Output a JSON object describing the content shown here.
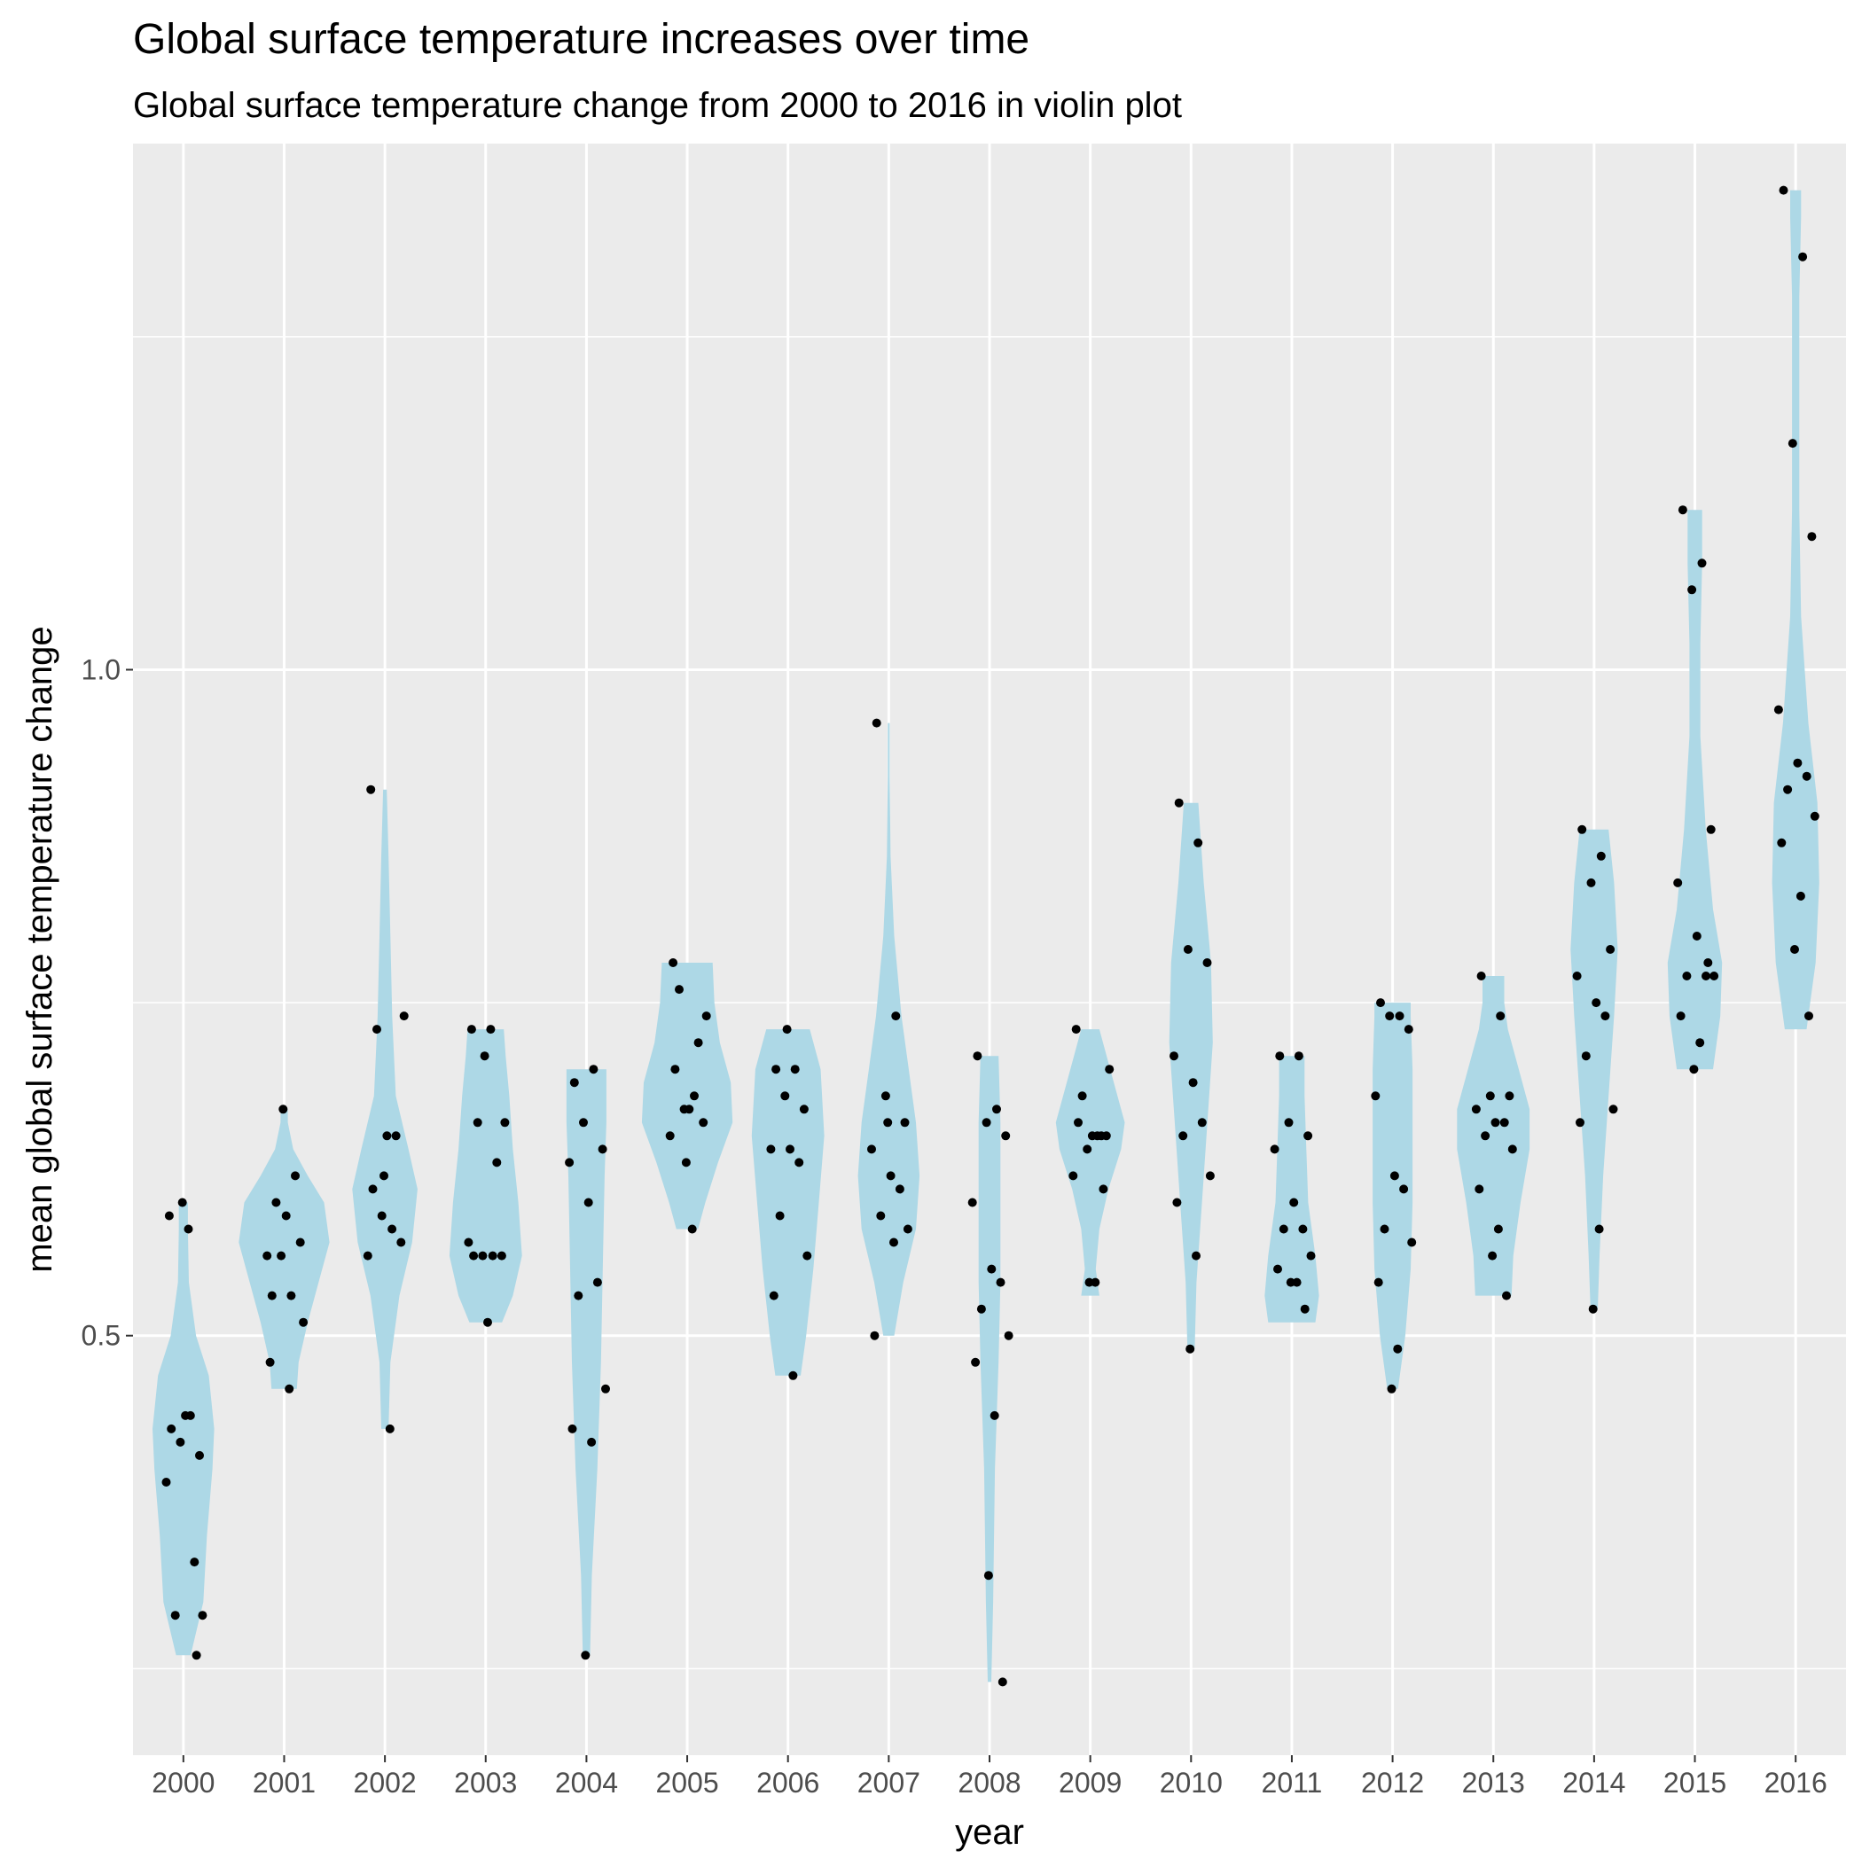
{
  "chart_data": {
    "type": "violin",
    "title": "Global surface temperature increases over time",
    "subtitle": "Global surface temperature change from 2000 to 2016 in violin plot",
    "xlabel": "year",
    "ylabel": "mean global surface temperature change",
    "ylim": [
      0.185,
      1.395
    ],
    "yticks": [
      0.5,
      1.0
    ],
    "ytick_labels": [
      "0.5",
      "1.0"
    ],
    "grid": true,
    "legend": "none",
    "colors": {
      "panel": "#ebebeb",
      "grid": "#ffffff",
      "violin": "#add8e6",
      "point": "#000000",
      "tick": "#333333"
    },
    "categories": [
      "2000",
      "2001",
      "2002",
      "2003",
      "2004",
      "2005",
      "2006",
      "2007",
      "2008",
      "2009",
      "2010",
      "2011",
      "2012",
      "2013",
      "2014",
      "2015",
      "2016"
    ],
    "series": [
      {
        "category": "2000",
        "values": [
          0.43,
          0.44,
          0.42,
          0.41,
          0.39,
          0.44,
          0.33,
          0.29,
          0.29,
          0.59,
          0.58,
          0.6,
          0.26
        ],
        "profile": [
          [
            0.26,
            0.08
          ],
          [
            0.3,
            0.22
          ],
          [
            0.35,
            0.26
          ],
          [
            0.4,
            0.32
          ],
          [
            0.43,
            0.34
          ],
          [
            0.47,
            0.28
          ],
          [
            0.5,
            0.14
          ],
          [
            0.54,
            0.06
          ],
          [
            0.58,
            0.05
          ],
          [
            0.6,
            0.05
          ]
        ]
      },
      {
        "category": "2001",
        "values": [
          0.53,
          0.53,
          0.56,
          0.57,
          0.56,
          0.59,
          0.62,
          0.6,
          0.51,
          0.48,
          0.46,
          0.67
        ],
        "profile": [
          [
            0.46,
            0.14
          ],
          [
            0.48,
            0.16
          ],
          [
            0.51,
            0.26
          ],
          [
            0.54,
            0.38
          ],
          [
            0.57,
            0.5
          ],
          [
            0.6,
            0.44
          ],
          [
            0.62,
            0.26
          ],
          [
            0.64,
            0.1
          ],
          [
            0.66,
            0.04
          ],
          [
            0.67,
            0.04
          ]
        ]
      },
      {
        "category": "2002",
        "values": [
          0.61,
          0.58,
          0.59,
          0.57,
          0.56,
          0.65,
          0.65,
          0.73,
          0.74,
          0.91,
          0.43,
          0.62
        ],
        "profile": [
          [
            0.43,
            0.04
          ],
          [
            0.48,
            0.06
          ],
          [
            0.53,
            0.16
          ],
          [
            0.57,
            0.3
          ],
          [
            0.61,
            0.36
          ],
          [
            0.64,
            0.26
          ],
          [
            0.68,
            0.12
          ],
          [
            0.74,
            0.08
          ],
          [
            0.8,
            0.06
          ],
          [
            0.86,
            0.04
          ],
          [
            0.91,
            0.02
          ]
        ]
      },
      {
        "category": "2003",
        "values": [
          0.56,
          0.56,
          0.56,
          0.56,
          0.57,
          0.51,
          0.63,
          0.66,
          0.66,
          0.73,
          0.73,
          0.71
        ],
        "profile": [
          [
            0.51,
            0.18
          ],
          [
            0.53,
            0.3
          ],
          [
            0.56,
            0.4
          ],
          [
            0.6,
            0.36
          ],
          [
            0.64,
            0.3
          ],
          [
            0.68,
            0.26
          ],
          [
            0.71,
            0.22
          ],
          [
            0.73,
            0.2
          ]
        ]
      },
      {
        "category": "2004",
        "values": [
          0.69,
          0.7,
          0.66,
          0.64,
          0.63,
          0.6,
          0.54,
          0.53,
          0.46,
          0.43,
          0.42,
          0.26
        ],
        "profile": [
          [
            0.26,
            0.04
          ],
          [
            0.32,
            0.06
          ],
          [
            0.4,
            0.12
          ],
          [
            0.48,
            0.16
          ],
          [
            0.55,
            0.18
          ],
          [
            0.62,
            0.2
          ],
          [
            0.66,
            0.22
          ],
          [
            0.7,
            0.22
          ]
        ]
      },
      {
        "category": "2005",
        "values": [
          0.7,
          0.68,
          0.67,
          0.66,
          0.65,
          0.67,
          0.72,
          0.76,
          0.74,
          0.78,
          0.58,
          0.63
        ],
        "profile": [
          [
            0.58,
            0.12
          ],
          [
            0.6,
            0.2
          ],
          [
            0.63,
            0.34
          ],
          [
            0.66,
            0.5
          ],
          [
            0.69,
            0.48
          ],
          [
            0.72,
            0.36
          ],
          [
            0.75,
            0.3
          ],
          [
            0.78,
            0.28
          ]
        ]
      },
      {
        "category": "2006",
        "values": [
          0.7,
          0.7,
          0.68,
          0.67,
          0.64,
          0.64,
          0.63,
          0.59,
          0.56,
          0.53,
          0.47,
          0.73
        ],
        "profile": [
          [
            0.47,
            0.14
          ],
          [
            0.5,
            0.2
          ],
          [
            0.55,
            0.28
          ],
          [
            0.6,
            0.34
          ],
          [
            0.65,
            0.4
          ],
          [
            0.7,
            0.36
          ],
          [
            0.73,
            0.24
          ]
        ]
      },
      {
        "category": "2007",
        "values": [
          0.96,
          0.74,
          0.68,
          0.66,
          0.64,
          0.62,
          0.61,
          0.59,
          0.58,
          0.5,
          0.57,
          0.66
        ],
        "profile": [
          [
            0.5,
            0.06
          ],
          [
            0.54,
            0.16
          ],
          [
            0.58,
            0.3
          ],
          [
            0.62,
            0.34
          ],
          [
            0.66,
            0.3
          ],
          [
            0.7,
            0.22
          ],
          [
            0.74,
            0.14
          ],
          [
            0.8,
            0.06
          ],
          [
            0.86,
            0.02
          ],
          [
            0.92,
            0.01
          ],
          [
            0.96,
            0.01
          ]
        ]
      },
      {
        "category": "2008",
        "values": [
          0.71,
          0.67,
          0.66,
          0.65,
          0.6,
          0.55,
          0.54,
          0.52,
          0.5,
          0.48,
          0.44,
          0.32,
          0.24
        ],
        "profile": [
          [
            0.24,
            0.02
          ],
          [
            0.3,
            0.04
          ],
          [
            0.4,
            0.06
          ],
          [
            0.48,
            0.1
          ],
          [
            0.54,
            0.12
          ],
          [
            0.6,
            0.12
          ],
          [
            0.66,
            0.12
          ],
          [
            0.71,
            0.1
          ]
        ]
      },
      {
        "category": "2009",
        "values": [
          0.66,
          0.65,
          0.64,
          0.65,
          0.62,
          0.65,
          0.65,
          0.68,
          0.7,
          0.73,
          0.54,
          0.54,
          0.61
        ],
        "profile": [
          [
            0.53,
            0.1
          ],
          [
            0.55,
            0.06
          ],
          [
            0.58,
            0.1
          ],
          [
            0.61,
            0.2
          ],
          [
            0.64,
            0.34
          ],
          [
            0.66,
            0.38
          ],
          [
            0.69,
            0.26
          ],
          [
            0.72,
            0.14
          ],
          [
            0.73,
            0.1
          ]
        ]
      },
      {
        "category": "2010",
        "values": [
          0.9,
          0.87,
          0.79,
          0.78,
          0.71,
          0.69,
          0.66,
          0.65,
          0.62,
          0.6,
          0.56,
          0.49
        ],
        "profile": [
          [
            0.49,
            0.04
          ],
          [
            0.54,
            0.06
          ],
          [
            0.6,
            0.12
          ],
          [
            0.66,
            0.18
          ],
          [
            0.72,
            0.24
          ],
          [
            0.78,
            0.22
          ],
          [
            0.84,
            0.14
          ],
          [
            0.88,
            0.1
          ],
          [
            0.9,
            0.08
          ]
        ]
      },
      {
        "category": "2011",
        "values": [
          0.71,
          0.71,
          0.66,
          0.65,
          0.64,
          0.6,
          0.58,
          0.58,
          0.56,
          0.55,
          0.54,
          0.54,
          0.52
        ],
        "profile": [
          [
            0.51,
            0.26
          ],
          [
            0.53,
            0.3
          ],
          [
            0.56,
            0.26
          ],
          [
            0.6,
            0.18
          ],
          [
            0.64,
            0.16
          ],
          [
            0.68,
            0.14
          ],
          [
            0.71,
            0.14
          ]
        ]
      },
      {
        "category": "2012",
        "values": [
          0.75,
          0.74,
          0.74,
          0.73,
          0.68,
          0.62,
          0.61,
          0.58,
          0.57,
          0.54,
          0.49,
          0.46
        ],
        "profile": [
          [
            0.46,
            0.06
          ],
          [
            0.5,
            0.14
          ],
          [
            0.55,
            0.2
          ],
          [
            0.6,
            0.22
          ],
          [
            0.65,
            0.22
          ],
          [
            0.7,
            0.22
          ],
          [
            0.74,
            0.2
          ],
          [
            0.75,
            0.2
          ]
        ]
      },
      {
        "category": "2013",
        "values": [
          0.77,
          0.74,
          0.68,
          0.68,
          0.67,
          0.66,
          0.66,
          0.65,
          0.64,
          0.61,
          0.58,
          0.56,
          0.53
        ],
        "profile": [
          [
            0.53,
            0.2
          ],
          [
            0.56,
            0.22
          ],
          [
            0.6,
            0.3
          ],
          [
            0.64,
            0.4
          ],
          [
            0.67,
            0.4
          ],
          [
            0.7,
            0.28
          ],
          [
            0.73,
            0.16
          ],
          [
            0.75,
            0.12
          ],
          [
            0.77,
            0.12
          ]
        ]
      },
      {
        "category": "2014",
        "values": [
          0.88,
          0.86,
          0.84,
          0.79,
          0.77,
          0.75,
          0.74,
          0.71,
          0.67,
          0.66,
          0.58,
          0.52
        ],
        "profile": [
          [
            0.52,
            0.04
          ],
          [
            0.56,
            0.06
          ],
          [
            0.62,
            0.1
          ],
          [
            0.68,
            0.16
          ],
          [
            0.74,
            0.22
          ],
          [
            0.79,
            0.26
          ],
          [
            0.84,
            0.22
          ],
          [
            0.88,
            0.16
          ]
        ]
      },
      {
        "category": "2015",
        "values": [
          1.12,
          1.08,
          1.06,
          0.88,
          0.84,
          0.8,
          0.77,
          0.77,
          0.77,
          0.74,
          0.72,
          0.7,
          0.78
        ],
        "profile": [
          [
            0.7,
            0.2
          ],
          [
            0.74,
            0.28
          ],
          [
            0.78,
            0.3
          ],
          [
            0.82,
            0.2
          ],
          [
            0.88,
            0.12
          ],
          [
            0.95,
            0.06
          ],
          [
            1.02,
            0.06
          ],
          [
            1.08,
            0.08
          ],
          [
            1.12,
            0.08
          ]
        ]
      },
      {
        "category": "2016",
        "values": [
          1.36,
          1.31,
          1.17,
          1.1,
          0.97,
          0.93,
          0.92,
          0.91,
          0.89,
          0.87,
          0.83,
          0.79,
          0.74
        ],
        "profile": [
          [
            0.73,
            0.12
          ],
          [
            0.78,
            0.22
          ],
          [
            0.84,
            0.26
          ],
          [
            0.9,
            0.24
          ],
          [
            0.96,
            0.14
          ],
          [
            1.04,
            0.06
          ],
          [
            1.12,
            0.04
          ],
          [
            1.2,
            0.04
          ],
          [
            1.28,
            0.04
          ],
          [
            1.34,
            0.06
          ],
          [
            1.36,
            0.06
          ]
        ]
      }
    ]
  }
}
